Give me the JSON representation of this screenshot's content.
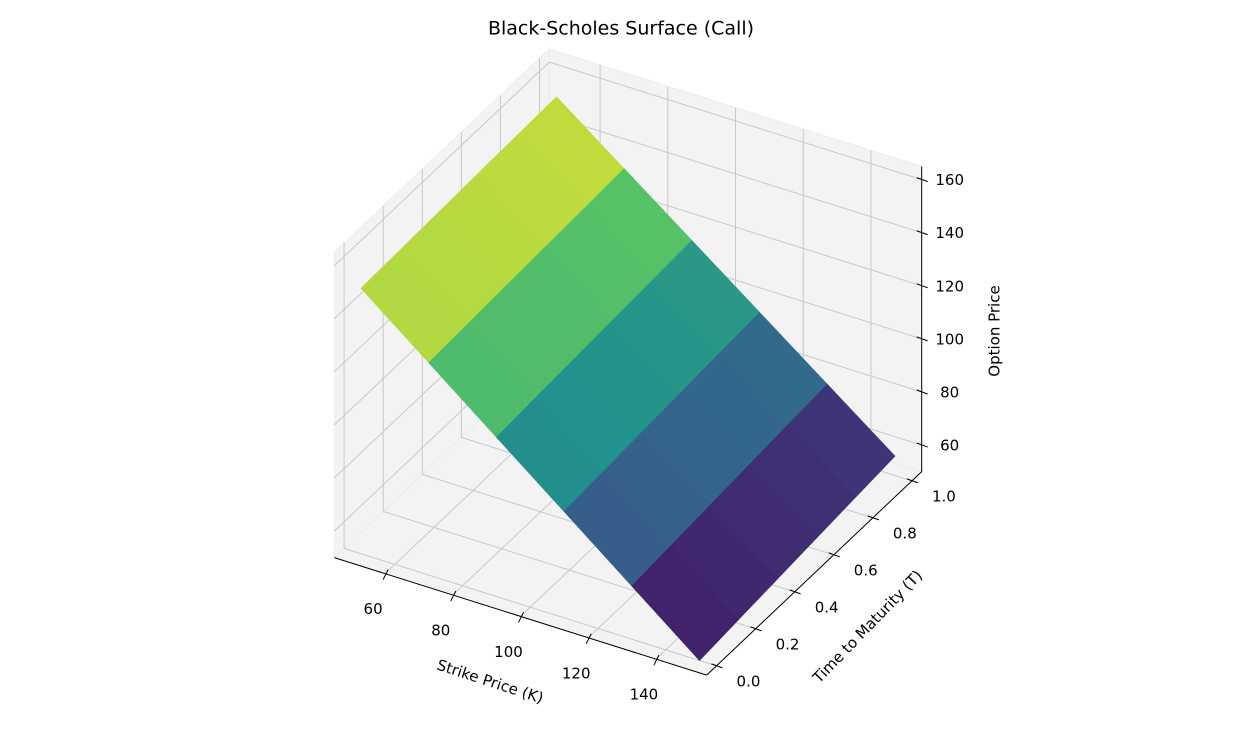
{
  "chart_data": {
    "type": "surface",
    "title": "Black-Scholes Surface (Call)",
    "x_label": "Strike Price (K)",
    "y_label": "Time to Maturity (T)",
    "z_label": "Option Price",
    "colormap": "viridis",
    "grid": true,
    "x": [
      50,
      70,
      90,
      110,
      130,
      150
    ],
    "y": [
      0,
      0.2,
      0.4,
      0.6,
      0.8,
      1
    ],
    "z": [
      [
        150,
        150.5,
        150.99,
        151.48,
        151.96,
        152.44
      ],
      [
        130,
        130.7,
        131.39,
        132.07,
        132.74,
        133.41
      ],
      [
        110,
        110.9,
        111.78,
        112.66,
        113.53,
        114.39
      ],
      [
        90,
        91.09,
        92.18,
        93.25,
        94.31,
        95.36
      ],
      [
        70,
        71.29,
        72.57,
        73.84,
        75.1,
        76.34
      ],
      [
        50,
        51.49,
        52.97,
        54.43,
        55.88,
        57.32
      ]
    ],
    "xlim": [
      45,
      155
    ],
    "ylim": [
      -0.05,
      1.05
    ],
    "zlim": [
      50,
      165
    ],
    "xticks": [
      60,
      80,
      100,
      120,
      140
    ],
    "yticks": [
      {
        "value": 0,
        "label": "0.0"
      },
      0.2,
      0.4,
      0.6,
      0.8,
      {
        "value": 1,
        "label": "1.0"
      }
    ],
    "zticks": [
      60,
      80,
      100,
      120,
      140,
      160
    ]
  }
}
